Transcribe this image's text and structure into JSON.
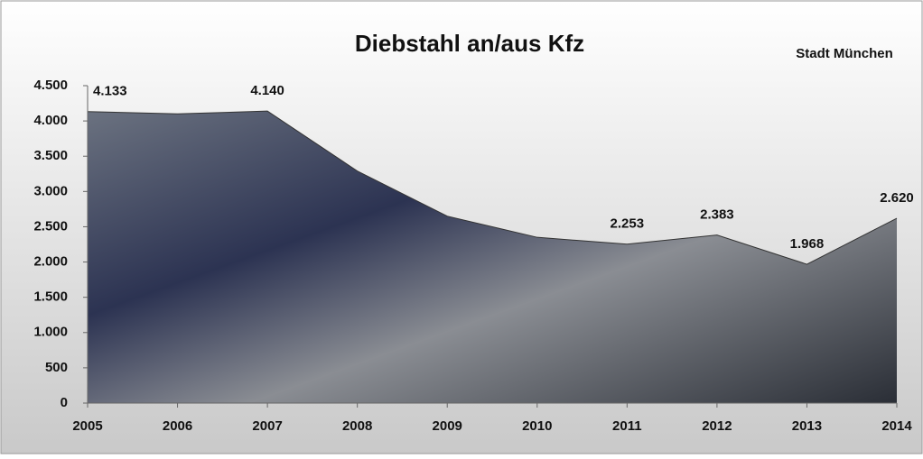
{
  "chart_data": {
    "type": "area",
    "title": "Diebstahl an/aus Kfz",
    "subtitle": "Stadt München",
    "x": [
      2005,
      2006,
      2007,
      2008,
      2009,
      2010,
      2011,
      2012,
      2013,
      2014
    ],
    "values": [
      4133,
      4100,
      4140,
      3290,
      2650,
      2350,
      2253,
      2383,
      1968,
      2620
    ],
    "value_labels": [
      "4.133",
      null,
      "4.140",
      null,
      null,
      null,
      "2.253",
      "2.383",
      "1.968",
      "2.620"
    ],
    "color": "#3a4152",
    "xlim": [
      2005,
      2014
    ],
    "xticks": [
      2005,
      2006,
      2007,
      2008,
      2009,
      2010,
      2011,
      2012,
      2013,
      2014
    ],
    "ylim": [
      0,
      4500
    ],
    "yticks": [
      0,
      500,
      {
        "value": 1000,
        "label": "1.000"
      },
      {
        "value": 1500,
        "label": "1.500"
      },
      {
        "value": 2000,
        "label": "2.000"
      },
      {
        "value": 2500,
        "label": "2.500"
      },
      {
        "value": 3000,
        "label": "3.000"
      },
      {
        "value": 3500,
        "label": "3.500"
      },
      {
        "value": 4000,
        "label": "4.000"
      },
      {
        "value": 4500,
        "label": "4.500"
      }
    ],
    "grid": false
  }
}
